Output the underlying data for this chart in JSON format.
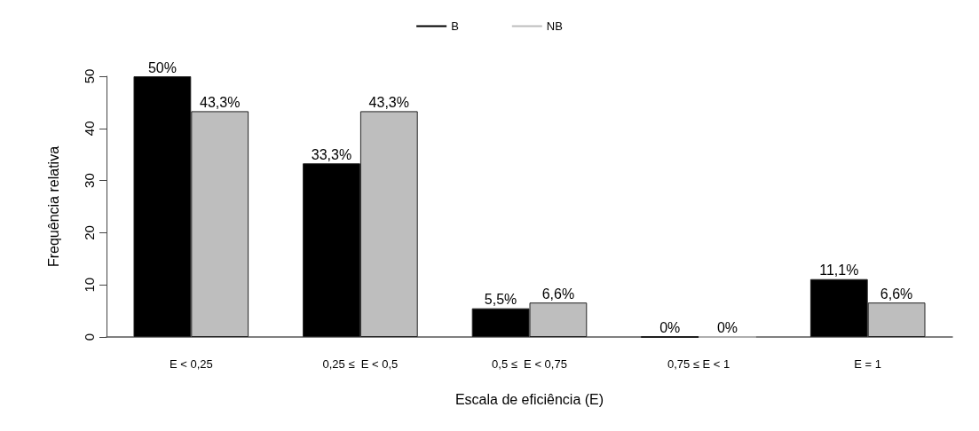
{
  "chart_data": {
    "type": "bar",
    "xlabel": "Escala de eficiência (E)",
    "ylabel": "Frequência relativa",
    "categories": [
      "E < 0,25",
      "0,25 ≤  E < 0,5",
      "0,5 ≤  E < 0,75",
      "0,75 ≤ E < 1",
      "E = 1"
    ],
    "series": [
      {
        "name": "B",
        "color": "#000000",
        "values": [
          50,
          33.3,
          5.5,
          0,
          11.1
        ],
        "value_labels": [
          "50%",
          "33,3%",
          "5,5%",
          "0%",
          "11,1%"
        ]
      },
      {
        "name": "NB",
        "color": "#bebebe",
        "values": [
          43.3,
          43.3,
          6.6,
          0,
          6.6
        ],
        "value_labels": [
          "43,3%",
          "43,3%",
          "6,6%",
          "0%",
          "6,6%"
        ]
      }
    ],
    "ylim": [
      0,
      50
    ],
    "yticks": [
      0,
      10,
      20,
      30,
      40,
      50
    ],
    "grid": false,
    "legend": "top"
  }
}
